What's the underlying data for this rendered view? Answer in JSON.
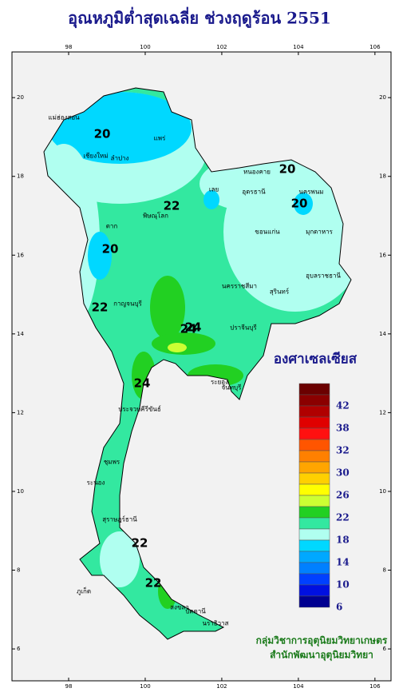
{
  "header": {
    "title": "อุณหภูมิต่ำสุดเฉลี่ย ช่วงฤดูร้อน 2551"
  },
  "map": {
    "xlim": [
      96.52,
      106.42
    ],
    "ylim": [
      5.19,
      21.16
    ],
    "xticks": [
      98,
      100,
      102,
      104,
      106
    ],
    "yticks": [
      6,
      8,
      10,
      12,
      14,
      16,
      18,
      20
    ],
    "contour_labels": [
      20,
      20,
      22,
      20,
      20,
      22,
      24,
      24,
      24,
      22,
      22
    ],
    "places": [
      "แม่ฮ่องสอน",
      "เชียงใหม่",
      "ลำปาง",
      "แพร่",
      "ตาก",
      "พิษณุโลก",
      "เลย",
      "หนองคาย",
      "อุดรธานี",
      "นครพนม",
      "ขอนแก่น",
      "มุกดาหาร",
      "อุบลราชธานี",
      "นครราชสีมา",
      "สุรินทร์",
      "กาญจนบุรี",
      "ปราจีนบุรี",
      "ระยอง",
      "จันทบุรี",
      "ประจวบคีรีขันธ์",
      "ชุมพร",
      "ระนอง",
      "สุราษฎร์ธานี",
      "ภูเก็ต",
      "สงขลา",
      "ปัตตานี",
      "นราธิวาส"
    ]
  },
  "legend": {
    "title": "องศาเซลเซียส",
    "colors": [
      "#6b0000",
      "#8b0000",
      "#b00000",
      "#e00000",
      "#ff1010",
      "#ff5500",
      "#ff8000",
      "#ffa500",
      "#ffd000",
      "#ffff00",
      "#ccff33",
      "#22d022",
      "#33e8a0",
      "#b0fff0",
      "#00d8ff",
      "#00a8ff",
      "#0080ff",
      "#0040ff",
      "#0010e0",
      "#000090"
    ],
    "ticks": [
      42,
      38,
      32,
      30,
      26,
      22,
      18,
      14,
      10,
      6
    ]
  },
  "credits": [
    "กลุ่มวิชาการอุตุนิยมวิทยาเกษตร",
    "สำนักพัฒนาอุตุนิยมวิทยา"
  ]
}
